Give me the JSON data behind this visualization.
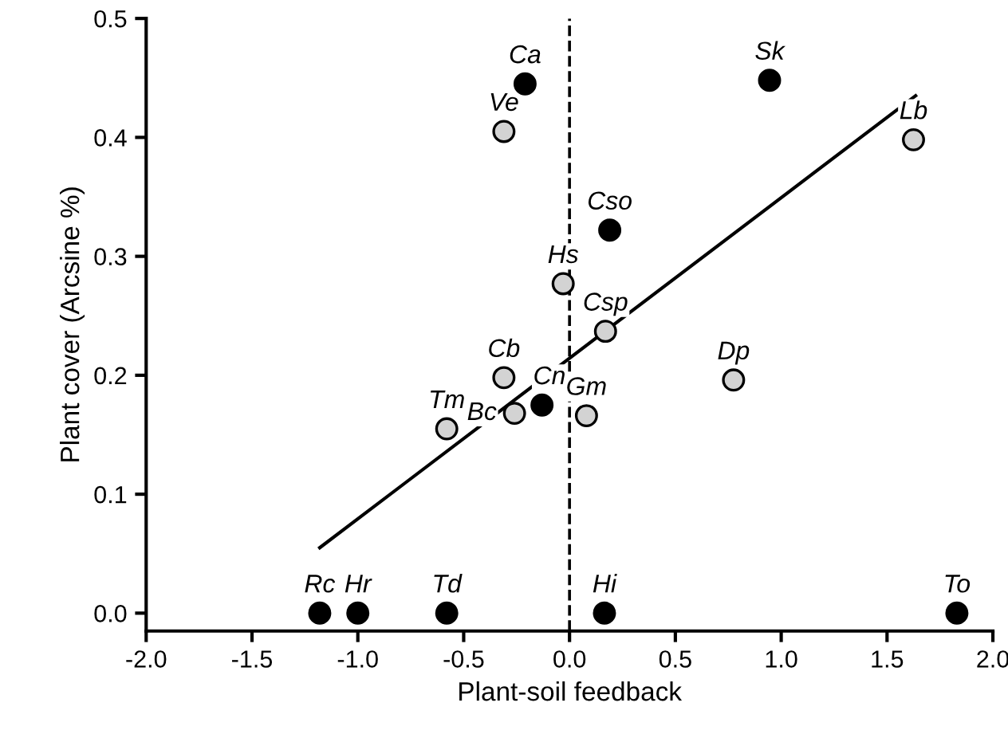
{
  "chart_data": {
    "type": "scatter",
    "xlabel": "Plant-soil feedback",
    "ylabel": "Plant cover (Arcsine %)",
    "series": [
      {
        "marker": "circle",
        "color": "#000000",
        "x": [
          -0.21,
          0.945,
          0.19,
          -0.13,
          -1.18,
          -1.0,
          -0.58,
          0.165,
          1.83
        ],
        "values": [
          0.445,
          0.448,
          0.322,
          0.175,
          0,
          0,
          0,
          0,
          0
        ]
      },
      {
        "marker": "circle",
        "color": "#d3d3d3",
        "x": [
          -0.31,
          1.625,
          -0.03,
          0.17,
          -0.31,
          0.775,
          -0.58,
          -0.26,
          0.08
        ],
        "values": [
          0.405,
          0.398,
          0.277,
          0.237,
          0.198,
          0.196,
          0.155,
          0.168,
          0.166
        ]
      },
      {
        "type": "line",
        "color": "#000000",
        "x": [
          -1.18,
          1.635
        ],
        "values": [
          0.055,
          0.435
        ]
      }
    ],
    "annotations": [
      {
        "text": "Ca",
        "x": -0.21,
        "y": 0.445
      },
      {
        "text": "Sk",
        "x": 0.945,
        "y": 0.448
      },
      {
        "text": "Cso",
        "x": 0.19,
        "y": 0.322
      },
      {
        "text": "Cn",
        "x": -0.13,
        "y": 0.175
      },
      {
        "text": "Rc",
        "x": -1.18,
        "y": 0
      },
      {
        "text": "Hr",
        "x": -1.0,
        "y": 0
      },
      {
        "text": "Td",
        "x": -0.58,
        "y": 0
      },
      {
        "text": "Hi",
        "x": 0.165,
        "y": 0
      },
      {
        "text": "To",
        "x": 1.83,
        "y": 0
      },
      {
        "text": "Ve",
        "x": -0.31,
        "y": 0.405
      },
      {
        "text": "Lb",
        "x": 1.625,
        "y": 0.398
      },
      {
        "text": "Hs",
        "x": -0.03,
        "y": 0.277
      },
      {
        "text": "Csp",
        "x": 0.17,
        "y": 0.237
      },
      {
        "text": "Cb",
        "x": -0.31,
        "y": 0.198
      },
      {
        "text": "Dp",
        "x": 0.775,
        "y": 0.196
      },
      {
        "text": "Tm",
        "x": -0.58,
        "y": 0.155
      },
      {
        "text": "Bc",
        "x": -0.26,
        "y": 0.168
      },
      {
        "text": "Gm",
        "x": 0.08,
        "y": 0.166
      }
    ],
    "ref_lines": [
      {
        "axis": "x",
        "value": 0,
        "line_style": "dashed",
        "color": "#000000"
      }
    ],
    "xlim": [
      -2.0,
      2.0
    ],
    "xticks": [
      {
        "value": -2,
        "label": "-2.0"
      },
      {
        "value": -1.5,
        "label": "-1.5"
      },
      {
        "value": -1,
        "label": "-1.0"
      },
      {
        "value": -0.5,
        "label": "-0.5"
      },
      {
        "value": 0,
        "label": "0.0"
      },
      {
        "value": 0.5,
        "label": "0.5"
      },
      {
        "value": 1,
        "label": "1.0"
      },
      {
        "value": 1.5,
        "label": "1.5"
      },
      {
        "value": 2,
        "label": "2.0"
      }
    ],
    "ylim": [
      -0.015,
      0.5
    ],
    "yticks": [
      {
        "value": 0,
        "label": "0.0"
      },
      0.1,
      0.2,
      0.3,
      0.4,
      0.5
    ],
    "grid": false,
    "legend": false
  }
}
